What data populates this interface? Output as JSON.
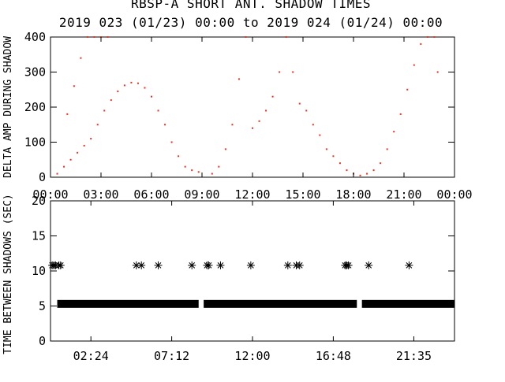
{
  "title": "RBSP-A SHORT ANT. SHADOW TIMES",
  "subtitle": "2019 023 (01/23) 00:00 to 2019 024 (01/24) 00:00",
  "colors": {
    "points_top": "#e8321e",
    "axes": "#000000",
    "background": "#ffffff"
  },
  "chart_data": [
    {
      "type": "scatter",
      "ylabel": "DELTA AMP DURING SHADOW",
      "xlim": [
        "00:00",
        "24:00"
      ],
      "ylim": [
        0,
        400
      ],
      "x_ticks": [
        "00:00",
        "03:00",
        "06:00",
        "09:00",
        "12:00",
        "15:00",
        "18:00",
        "21:00",
        "00:00"
      ],
      "y_ticks": [
        "0",
        "100",
        "200",
        "300",
        "400"
      ],
      "grid": false,
      "series": [
        {
          "color": "#e8321e",
          "marker": "dot",
          "x_hours": [
            0.4,
            0.8,
            1.2,
            1.6,
            2.0,
            2.4,
            2.8,
            3.2,
            3.6,
            4.0,
            4.4,
            4.8,
            5.2,
            5.6,
            6.0,
            6.4,
            6.8,
            7.2,
            7.6,
            8.0,
            8.4,
            8.8,
            1.0,
            1.4,
            1.8,
            2.2,
            2.6,
            3.0,
            3.4,
            9.6,
            10.0,
            10.4,
            10.8,
            11.2,
            11.6,
            12.0,
            12.4,
            12.8,
            13.2,
            13.6,
            14.0,
            14.4,
            14.8,
            15.2,
            15.6,
            16.0,
            16.4,
            16.8,
            17.2,
            17.6,
            18.0,
            18.4,
            18.8,
            19.2,
            19.6,
            20.0,
            20.4,
            20.8,
            21.2,
            21.6,
            22.0,
            22.4,
            22.8,
            23.0
          ],
          "y": [
            10,
            30,
            50,
            70,
            90,
            110,
            150,
            190,
            220,
            245,
            262,
            270,
            268,
            255,
            230,
            190,
            150,
            100,
            60,
            30,
            20,
            15,
            180,
            260,
            340,
            400,
            400,
            400,
            400,
            10,
            30,
            80,
            150,
            280,
            400,
            140,
            160,
            190,
            230,
            300,
            400,
            300,
            210,
            190,
            150,
            120,
            80,
            60,
            40,
            20,
            10,
            5,
            10,
            20,
            40,
            80,
            130,
            180,
            250,
            320,
            380,
            400,
            400,
            300
          ]
        }
      ]
    },
    {
      "type": "scatter",
      "ylabel": "TIME BETWEEN SHADOWS (SEC)",
      "xlim": [
        "00:00",
        "24:00"
      ],
      "ylim": [
        0,
        20
      ],
      "x_ticks": [
        "02:24",
        "07:12",
        "12:00",
        "16:48",
        "21:35"
      ],
      "y_ticks": [
        "0",
        "5",
        "10",
        "15",
        "20"
      ],
      "grid": false,
      "series": [
        {
          "marker": "asterisk",
          "color": "#000000",
          "x_hours": [
            0.1,
            0.2,
            0.3,
            0.5,
            0.6,
            5.1,
            5.4,
            6.4,
            8.4,
            9.3,
            9.4,
            10.1,
            11.9,
            14.1,
            14.6,
            14.8,
            17.5,
            17.6,
            17.7,
            18.9,
            21.3
          ],
          "y": [
            10.8,
            10.8,
            10.8,
            10.8,
            10.8,
            10.8,
            10.8,
            10.8,
            10.8,
            10.8,
            10.8,
            10.8,
            10.8,
            10.8,
            10.8,
            10.8,
            10.8,
            10.8,
            10.8,
            10.8,
            10.8
          ]
        },
        {
          "marker": "asterisk-band",
          "color": "#000000",
          "note_segments": [
            [
              0.4,
              8.8
            ],
            [
              9.1,
              18.2
            ],
            [
              18.5,
              24.0
            ]
          ],
          "y": 5.3
        }
      ]
    }
  ]
}
